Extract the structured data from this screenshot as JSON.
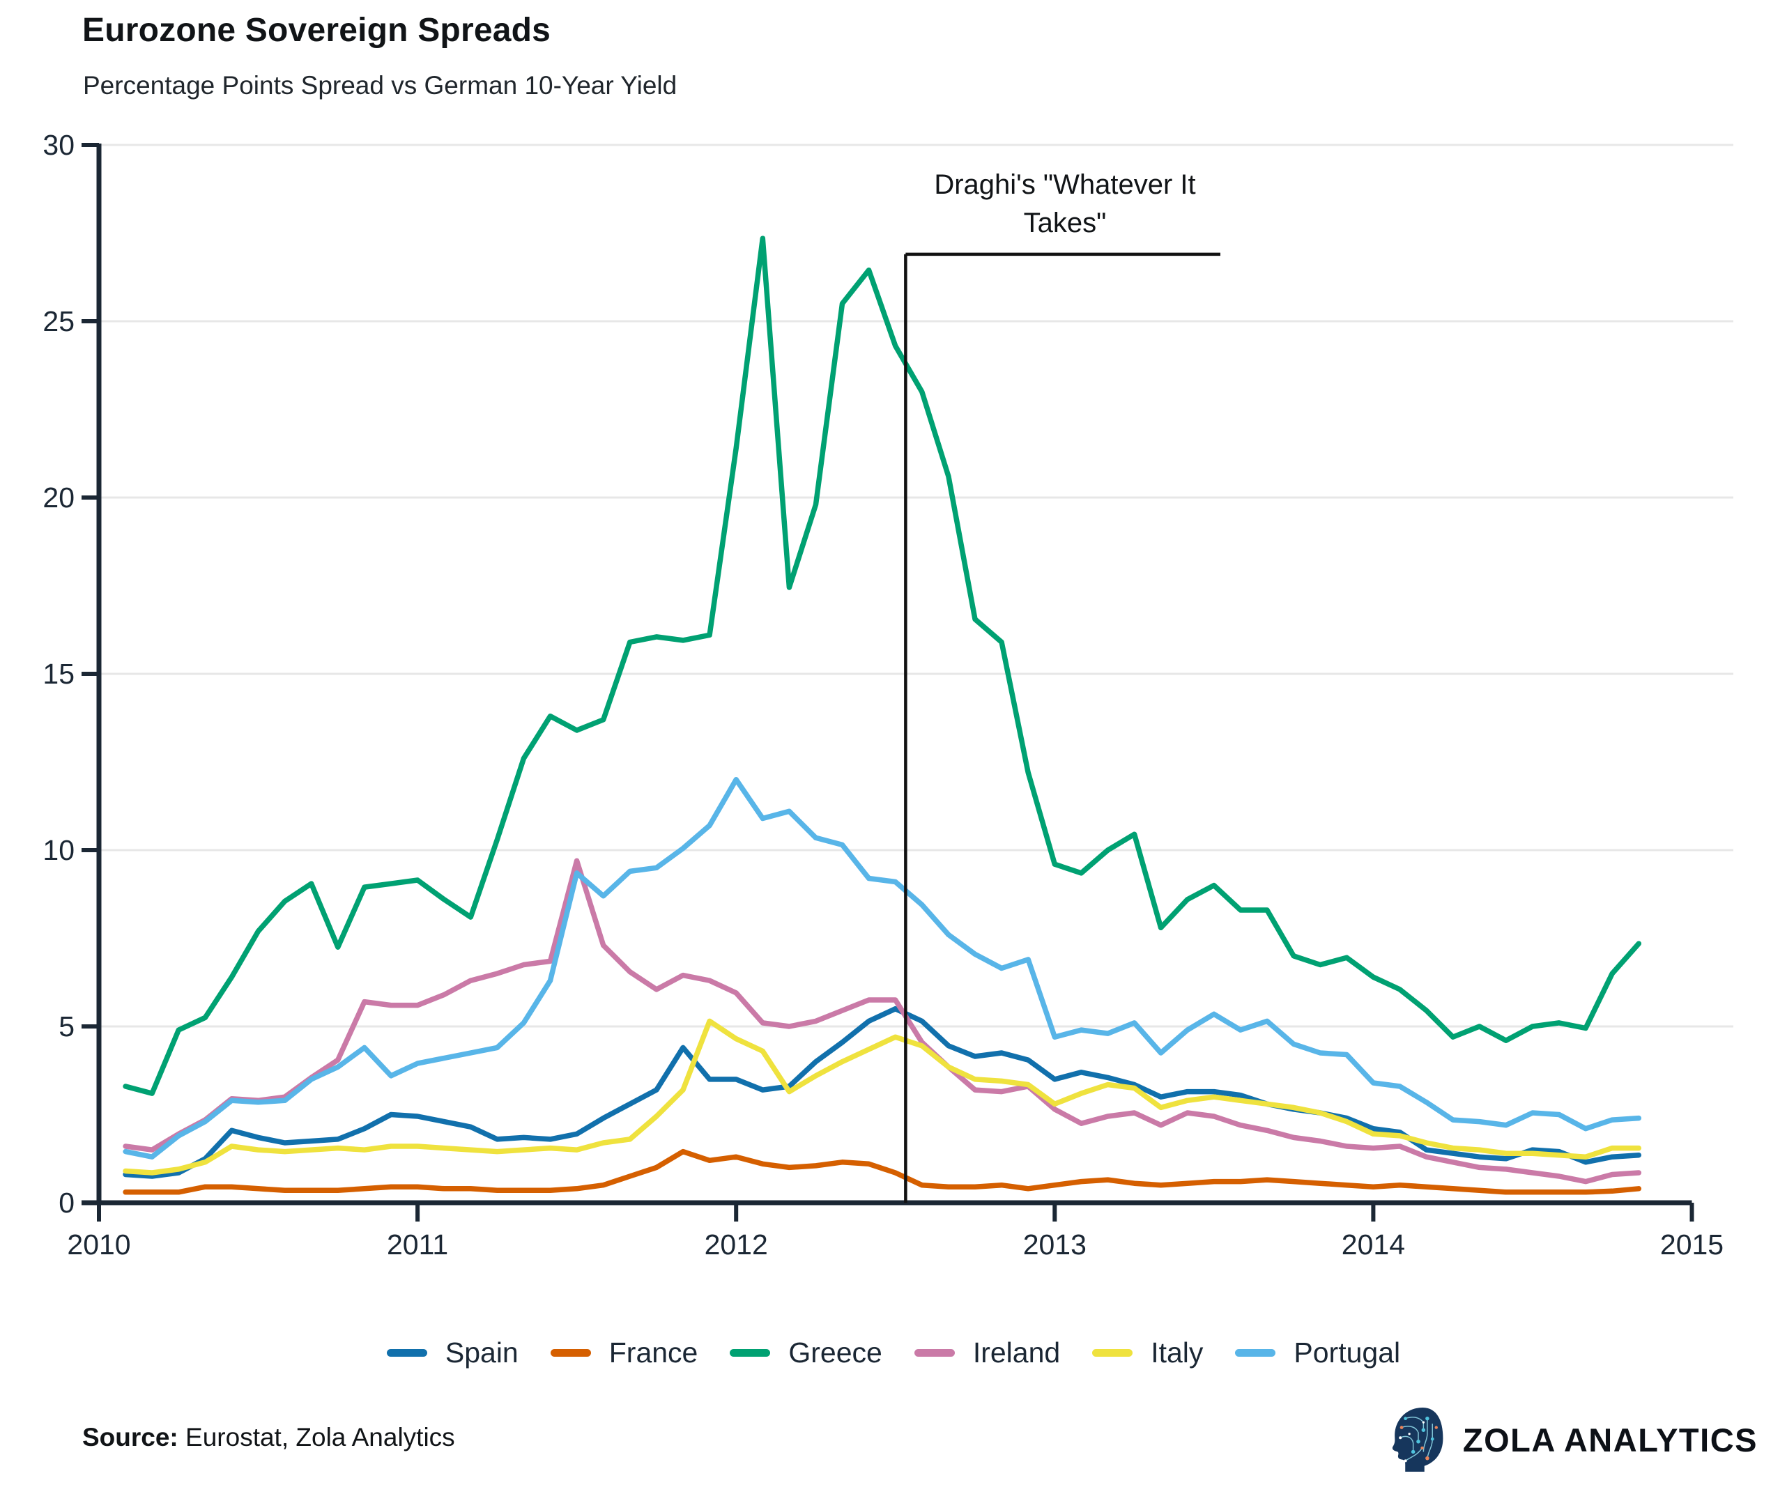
{
  "header": {
    "title": "Eurozone Sovereign Spreads",
    "subtitle": "Percentage Points Spread vs German 10-Year Yield"
  },
  "footer": {
    "source_label": "Source:",
    "source_text": " Eurostat, Zola Analytics",
    "brand_name": "ZOLA ANALYTICS",
    "logo_icon": "head-circuit-icon"
  },
  "colors": {
    "axis": "#1b2734",
    "grid": "#e7e7e7",
    "annotation": "#111111",
    "background": "#ffffff"
  },
  "chart_data": {
    "type": "line",
    "title": "Eurozone Sovereign Spreads",
    "subtitle": "Percentage Points Spread vs German 10-Year Yield",
    "xlabel": "",
    "ylabel": "",
    "x_start_year": 2010.0833,
    "x_step_years": 0.083333,
    "x_axis": {
      "ticks": [
        2010,
        2011,
        2012,
        2013,
        2014,
        2015
      ],
      "range": [
        2010,
        2015
      ]
    },
    "y_axis": {
      "ticks": [
        0,
        5,
        10,
        15,
        20,
        25,
        30
      ],
      "range": [
        0,
        30
      ]
    },
    "grid": "horizontal",
    "legend_position": "bottom",
    "annotation": {
      "text_line1": "Draghi's \"Whatever It",
      "text_line2": "Takes\"",
      "x_year": 2012.532,
      "bracket_top_value": 26.9,
      "bracket_end_year": 2013.52
    },
    "series": [
      {
        "name": "Spain",
        "color": "#1170ac",
        "values": [
          0.8,
          0.75,
          0.85,
          1.25,
          2.05,
          1.85,
          1.7,
          1.75,
          1.8,
          2.1,
          2.5,
          2.45,
          2.3,
          2.15,
          1.8,
          1.85,
          1.8,
          1.95,
          2.4,
          2.8,
          3.2,
          4.4,
          3.5,
          3.5,
          3.2,
          3.3,
          4.0,
          4.55,
          5.15,
          5.5,
          5.15,
          4.45,
          4.15,
          4.25,
          4.05,
          3.5,
          3.7,
          3.55,
          3.35,
          3.0,
          3.15,
          3.15,
          3.05,
          2.8,
          2.65,
          2.55,
          2.4,
          2.1,
          2.0,
          1.5,
          1.4,
          1.3,
          1.25,
          1.5,
          1.45,
          1.15,
          1.3,
          1.35
        ]
      },
      {
        "name": "France",
        "color": "#d55f00",
        "values": [
          0.3,
          0.3,
          0.3,
          0.45,
          0.45,
          0.4,
          0.35,
          0.35,
          0.35,
          0.4,
          0.45,
          0.45,
          0.4,
          0.4,
          0.35,
          0.35,
          0.35,
          0.4,
          0.5,
          0.75,
          1.0,
          1.45,
          1.2,
          1.3,
          1.1,
          1.0,
          1.05,
          1.15,
          1.1,
          0.85,
          0.5,
          0.45,
          0.45,
          0.5,
          0.4,
          0.5,
          0.6,
          0.65,
          0.55,
          0.5,
          0.55,
          0.6,
          0.6,
          0.65,
          0.6,
          0.55,
          0.5,
          0.45,
          0.5,
          0.45,
          0.4,
          0.35,
          0.3,
          0.3,
          0.3,
          0.3,
          0.33,
          0.4
        ]
      },
      {
        "name": "Greece",
        "color": "#00a172",
        "values": [
          3.3,
          3.1,
          4.9,
          5.25,
          6.4,
          7.7,
          8.55,
          9.05,
          7.25,
          8.95,
          9.05,
          9.15,
          8.6,
          8.1,
          10.3,
          12.6,
          13.8,
          13.4,
          13.7,
          15.9,
          16.05,
          15.95,
          16.1,
          21.4,
          27.35,
          17.45,
          19.8,
          25.5,
          26.45,
          24.3,
          23.0,
          20.6,
          16.55,
          15.9,
          12.2,
          9.6,
          9.35,
          10.0,
          10.45,
          7.8,
          8.6,
          9.0,
          8.3,
          8.3,
          7.0,
          6.75,
          6.95,
          6.4,
          6.05,
          5.45,
          4.7,
          5.0,
          4.6,
          5.0,
          5.1,
          4.95,
          6.5,
          7.35
        ]
      },
      {
        "name": "Ireland",
        "color": "#ca7aa7",
        "values": [
          1.6,
          1.5,
          1.95,
          2.35,
          2.95,
          2.9,
          3.0,
          3.55,
          4.05,
          5.7,
          5.6,
          5.6,
          5.9,
          6.3,
          6.5,
          6.75,
          6.85,
          9.7,
          7.3,
          6.55,
          6.05,
          6.45,
          6.3,
          5.95,
          5.1,
          5.0,
          5.15,
          5.45,
          5.75,
          5.75,
          4.55,
          3.85,
          3.2,
          3.15,
          3.3,
          2.65,
          2.25,
          2.45,
          2.55,
          2.2,
          2.55,
          2.45,
          2.2,
          2.05,
          1.85,
          1.75,
          1.6,
          1.55,
          1.6,
          1.3,
          1.15,
          1.0,
          0.95,
          0.85,
          0.75,
          0.6,
          0.8,
          0.85
        ]
      },
      {
        "name": "Italy",
        "color": "#efe23e",
        "values": [
          0.9,
          0.85,
          0.95,
          1.15,
          1.6,
          1.5,
          1.45,
          1.5,
          1.55,
          1.5,
          1.6,
          1.6,
          1.55,
          1.5,
          1.45,
          1.5,
          1.55,
          1.5,
          1.7,
          1.8,
          2.45,
          3.2,
          5.15,
          4.65,
          4.3,
          3.15,
          3.6,
          4.0,
          4.35,
          4.7,
          4.45,
          3.85,
          3.5,
          3.45,
          3.35,
          2.8,
          3.1,
          3.35,
          3.25,
          2.7,
          2.9,
          3.0,
          2.9,
          2.8,
          2.7,
          2.55,
          2.3,
          1.95,
          1.9,
          1.7,
          1.55,
          1.5,
          1.4,
          1.4,
          1.35,
          1.3,
          1.55,
          1.55
        ]
      },
      {
        "name": "Portugal",
        "color": "#58b5e8",
        "values": [
          1.45,
          1.3,
          1.9,
          2.3,
          2.9,
          2.85,
          2.9,
          3.5,
          3.85,
          4.4,
          3.6,
          3.95,
          4.1,
          4.25,
          4.4,
          5.1,
          6.3,
          9.35,
          8.7,
          9.4,
          9.5,
          10.05,
          10.7,
          12.0,
          10.9,
          11.1,
          10.35,
          10.15,
          9.2,
          9.1,
          8.45,
          7.6,
          7.05,
          6.65,
          6.9,
          4.7,
          4.9,
          4.8,
          5.1,
          4.25,
          4.9,
          5.35,
          4.9,
          5.15,
          4.5,
          4.25,
          4.2,
          3.4,
          3.3,
          2.85,
          2.35,
          2.3,
          2.2,
          2.55,
          2.5,
          2.1,
          2.35,
          2.4
        ]
      }
    ]
  }
}
